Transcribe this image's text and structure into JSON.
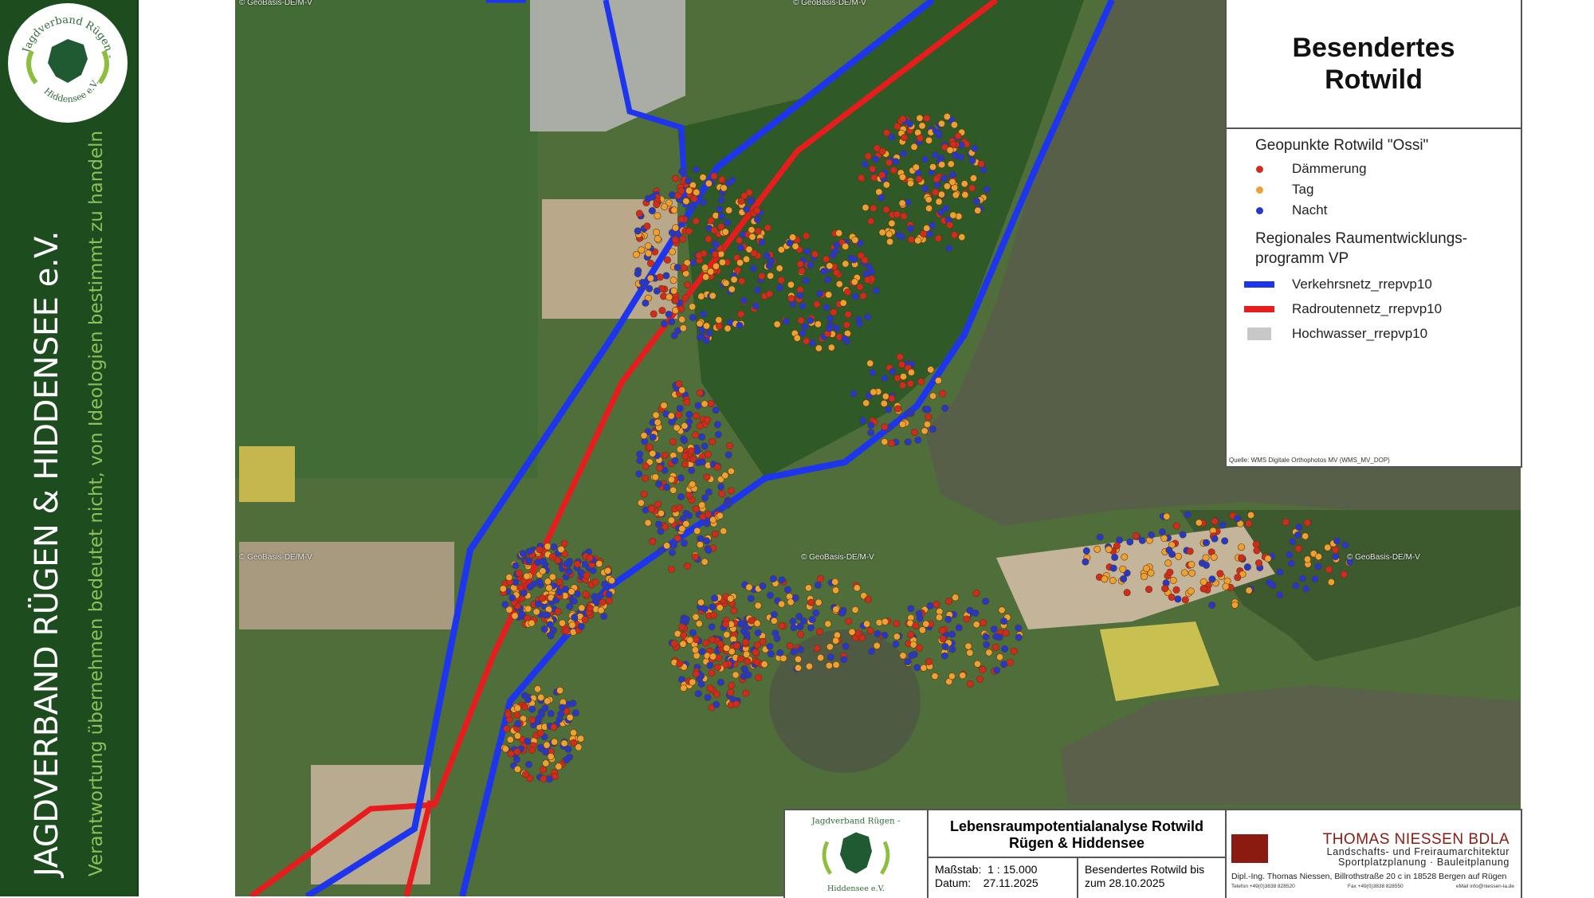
{
  "sidebar": {
    "org_name": "JAGDVERBAND RÜGEN & HIDDENSEE e.V.",
    "slogan": "Verantwortung übernehmen bedeutet nicht, von Ideologien bestimmt zu handeln",
    "logo_text_top": "Jagdverband Rügen -",
    "logo_text_bottom": "Hiddensee e.V."
  },
  "map": {
    "copyright": "© GeoBasis-DE/M-V",
    "colors": {
      "daemmerung": "#e02020",
      "tag": "#f4a21c",
      "nacht": "#2a36e0",
      "verkehrsnetz": "#1e35f0",
      "radroutennetz": "#e81c1c",
      "hochwasser": "#c8c8c8"
    }
  },
  "legend": {
    "title_line1": "Besendertes",
    "title_line2": "Rotwild",
    "points_heading": "Geopunkte Rotwild \"Ossi\"",
    "points": [
      {
        "label": "Dämmerung",
        "color": "#d42a1e"
      },
      {
        "label": "Tag",
        "color": "#f0a030"
      },
      {
        "label": "Nacht",
        "color": "#2438d0"
      }
    ],
    "rrep_heading_line1": "Regionales Raumentwicklungs-",
    "rrep_heading_line2": "programm VP",
    "layers": [
      {
        "label": "Verkehrsnetz_rrepvp10",
        "color": "#1e35f0",
        "symbol": "line"
      },
      {
        "label": "Radroutennetz_rrepvp10",
        "color": "#e81c1c",
        "symbol": "line"
      },
      {
        "label": "Hochwasser_rrepvp10",
        "color": "#c8c8c8",
        "symbol": "box"
      }
    ],
    "source": "Quelle: WMS Digitale Orthophotos MV (WMS_MV_DOP)"
  },
  "title_block": {
    "title_line1": "Lebensraumpotentialanalyse Rotwild",
    "title_line2": "Rügen & Hiddensee",
    "scale_label": "Maßstab:",
    "scale_value": "1 : 15.000",
    "date_label": "Datum:",
    "date_value": "27.11.2025",
    "note_line1": "Besendertes Rotwild bis",
    "note_line2": "zum 28.10.2025",
    "firm_name": "THOMAS NIESSEN  BDLA",
    "firm_sub1": "Landschafts- und Freiraumarchitektur",
    "firm_sub2": "Sportplatzplanung  ·  Bauleitplanung",
    "firm_address": "Dipl.-Ing. Thomas Niessen, Billrothstraße 20 c in 18528 Bergen auf Rügen",
    "firm_phone": "Telefon +49(0)3838 828520",
    "firm_fax": "Fax +49(0)3838 828550",
    "firm_email": "eMail info@niessen-la.de"
  }
}
